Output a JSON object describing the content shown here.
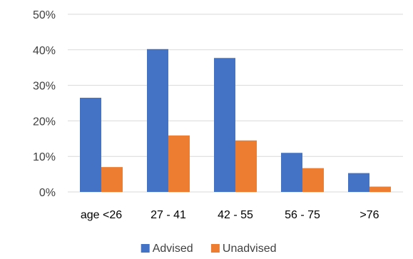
{
  "chart_data": {
    "type": "bar",
    "title": "",
    "xlabel": "",
    "ylabel": "",
    "categories": [
      "age <26",
      "27 - 41",
      "42 - 55",
      "56 - 75",
      ">76"
    ],
    "series": [
      {
        "name": "Advised",
        "color": "#4472C4",
        "values": [
          26.5,
          40.2,
          37.7,
          11.0,
          5.3
        ]
      },
      {
        "name": "Unadvised",
        "color": "#ED7D31",
        "values": [
          7.0,
          15.9,
          14.5,
          6.7,
          1.5
        ]
      }
    ],
    "ylim": [
      0,
      50
    ],
    "yticks": [
      0,
      10,
      20,
      30,
      40,
      50
    ],
    "ytick_labels": [
      "0%",
      "10%",
      "20%",
      "30%",
      "40%",
      "50%"
    ],
    "grid": true,
    "legend_position": "bottom"
  }
}
